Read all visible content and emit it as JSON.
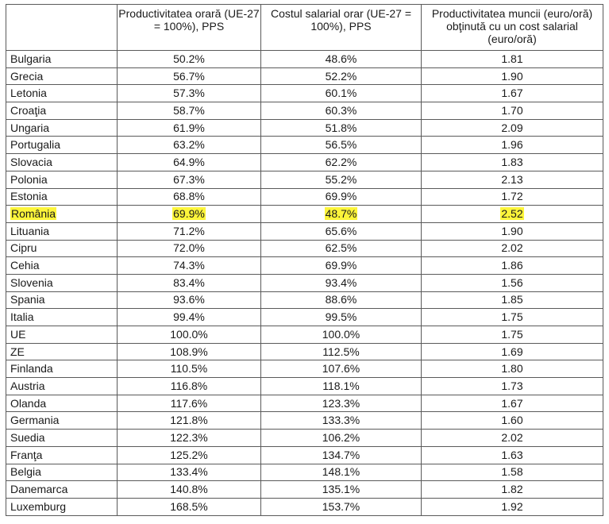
{
  "table": {
    "headers": [
      "",
      "Productivitatea orară (UE-27 = 100%), PPS",
      "Costul salarial orar  (UE-27 = 100%), PPS",
      "Productivitatea muncii (euro/oră) obţinută cu un cost salarial (euro/oră)"
    ],
    "highlight_color": "#fdf53a",
    "rows": [
      {
        "country": "Bulgaria",
        "productivity": "50.2%",
        "wage_cost": "48.6%",
        "ratio": "1.81"
      },
      {
        "country": "Grecia",
        "productivity": "56.7%",
        "wage_cost": "52.2%",
        "ratio": "1.90"
      },
      {
        "country": "Letonia",
        "productivity": "57.3%",
        "wage_cost": "60.1%",
        "ratio": "1.67"
      },
      {
        "country": "Croaţia",
        "productivity": "58.7%",
        "wage_cost": "60.3%",
        "ratio": "1.70"
      },
      {
        "country": "Ungaria",
        "productivity": "61.9%",
        "wage_cost": "51.8%",
        "ratio": "2.09"
      },
      {
        "country": "Portugalia",
        "productivity": "63.2%",
        "wage_cost": "56.5%",
        "ratio": "1.96"
      },
      {
        "country": "Slovacia",
        "productivity": "64.9%",
        "wage_cost": "62.2%",
        "ratio": "1.83"
      },
      {
        "country": "Polonia",
        "productivity": "67.3%",
        "wage_cost": "55.2%",
        "ratio": "2.13"
      },
      {
        "country": "Estonia",
        "productivity": "68.8%",
        "wage_cost": "69.9%",
        "ratio": "1.72"
      },
      {
        "country": "România",
        "productivity": "69.9%",
        "wage_cost": "48.7%",
        "ratio": "2.52",
        "highlighted": true
      },
      {
        "country": "Lituania",
        "productivity": "71.2%",
        "wage_cost": "65.6%",
        "ratio": "1.90"
      },
      {
        "country": "Cipru",
        "productivity": "72.0%",
        "wage_cost": "62.5%",
        "ratio": "2.02"
      },
      {
        "country": "Cehia",
        "productivity": "74.3%",
        "wage_cost": "69.9%",
        "ratio": "1.86"
      },
      {
        "country": "Slovenia",
        "productivity": "83.4%",
        "wage_cost": "93.4%",
        "ratio": "1.56"
      },
      {
        "country": "Spania",
        "productivity": "93.6%",
        "wage_cost": "88.6%",
        "ratio": "1.85"
      },
      {
        "country": "Italia",
        "productivity": "99.4%",
        "wage_cost": "99.5%",
        "ratio": "1.75"
      },
      {
        "country": "UE",
        "productivity": "100.0%",
        "wage_cost": "100.0%",
        "ratio": "1.75"
      },
      {
        "country": "ZE",
        "productivity": "108.9%",
        "wage_cost": "112.5%",
        "ratio": "1.69"
      },
      {
        "country": "Finlanda",
        "productivity": "110.5%",
        "wage_cost": "107.6%",
        "ratio": "1.80"
      },
      {
        "country": "Austria",
        "productivity": "116.8%",
        "wage_cost": "118.1%",
        "ratio": "1.73"
      },
      {
        "country": "Olanda",
        "productivity": "117.6%",
        "wage_cost": "123.3%",
        "ratio": "1.67"
      },
      {
        "country": "Germania",
        "productivity": "121.8%",
        "wage_cost": "133.3%",
        "ratio": "1.60"
      },
      {
        "country": "Suedia",
        "productivity": "122.3%",
        "wage_cost": "106.2%",
        "ratio": "2.02"
      },
      {
        "country": "Franţa",
        "productivity": "125.2%",
        "wage_cost": "134.7%",
        "ratio": "1.63"
      },
      {
        "country": "Belgia",
        "productivity": "133.4%",
        "wage_cost": "148.1%",
        "ratio": "1.58"
      },
      {
        "country": "Danemarca",
        "productivity": "140.8%",
        "wage_cost": "135.1%",
        "ratio": "1.82"
      },
      {
        "country": "Luxemburg",
        "productivity": "168.5%",
        "wage_cost": "153.7%",
        "ratio": "1.92"
      }
    ]
  }
}
